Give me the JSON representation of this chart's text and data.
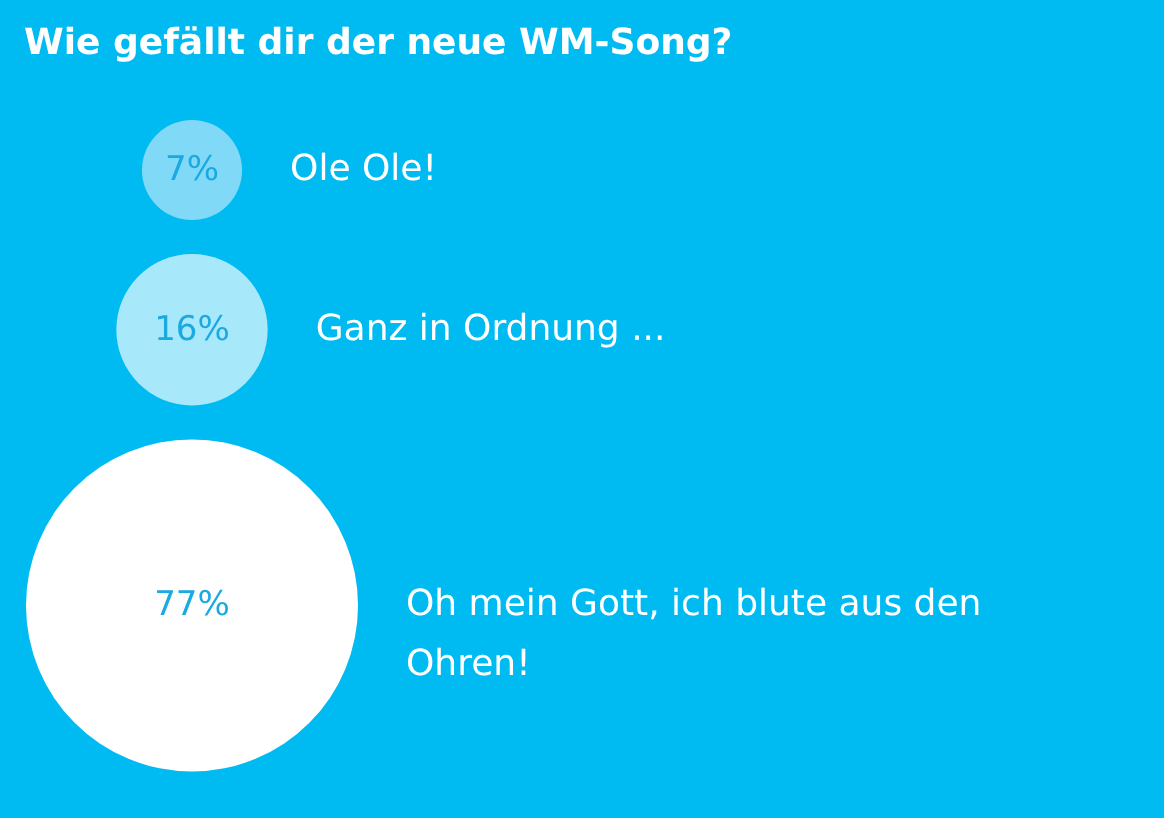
{
  "chart_data": {
    "type": "other",
    "title": "Wie gefällt dir der neue WM-Song?",
    "categories": [
      "Ole Ole!",
      "Ganz in Ordnung ...",
      "Oh mein Gott, ich blute aus den Ohren!"
    ],
    "values": [
      7,
      16,
      77
    ],
    "value_labels": [
      "7%",
      "16%",
      "77%"
    ],
    "colors": [
      "#80d9f6",
      "#a8e8fb",
      "#ffffff"
    ]
  }
}
